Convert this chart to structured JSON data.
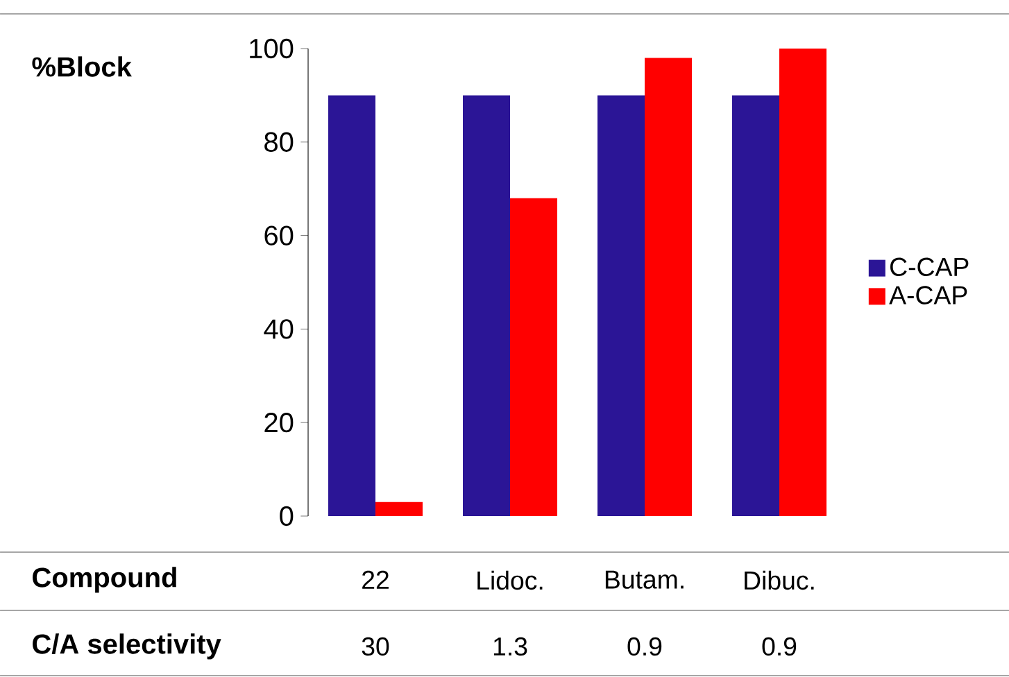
{
  "chart_data": {
    "type": "bar",
    "categories": [
      "22",
      "Lidoc.",
      "Butam.",
      "Dibuc."
    ],
    "series": [
      {
        "name": "C-CAP",
        "color": "#2b1596",
        "values": [
          90,
          90,
          90,
          90
        ]
      },
      {
        "name": "A-CAP",
        "color": "#ff0000",
        "values": [
          3,
          68,
          98,
          100
        ]
      }
    ],
    "ylabel": "%Block",
    "xlabel": "Compound",
    "annotations": [
      "C/A selectivity",
      "30",
      "1.3",
      "0.9",
      "0.9"
    ],
    "ylim": [
      0,
      100
    ],
    "yticks": [
      0,
      20,
      40,
      60,
      80,
      100
    ],
    "legend": "right"
  }
}
